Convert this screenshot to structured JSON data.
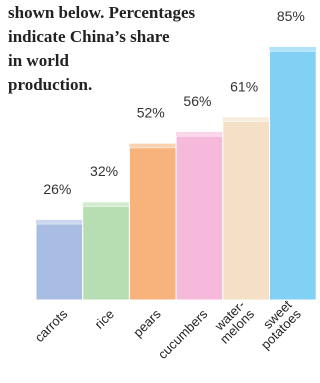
{
  "chart_data": {
    "type": "bar",
    "note": [
      "shown below. Percentages",
      "indicate China’s share",
      "in world",
      "production."
    ],
    "categories": [
      [
        "carrots"
      ],
      [
        "rice"
      ],
      [
        "pears"
      ],
      [
        "cucumbers"
      ],
      [
        "water-",
        "melons"
      ],
      [
        "sweet",
        "potatoes"
      ]
    ],
    "values": [
      26,
      32,
      52,
      56,
      61,
      85
    ],
    "value_labels": [
      "26%",
      "32%",
      "52%",
      "56%",
      "61%",
      "85%"
    ],
    "colors": [
      "#a9bde2",
      "#b7ddb2",
      "#f8b37c",
      "#f5badb",
      "#f3e0c6",
      "#80d1f3"
    ],
    "ylim": [
      0,
      100
    ]
  }
}
